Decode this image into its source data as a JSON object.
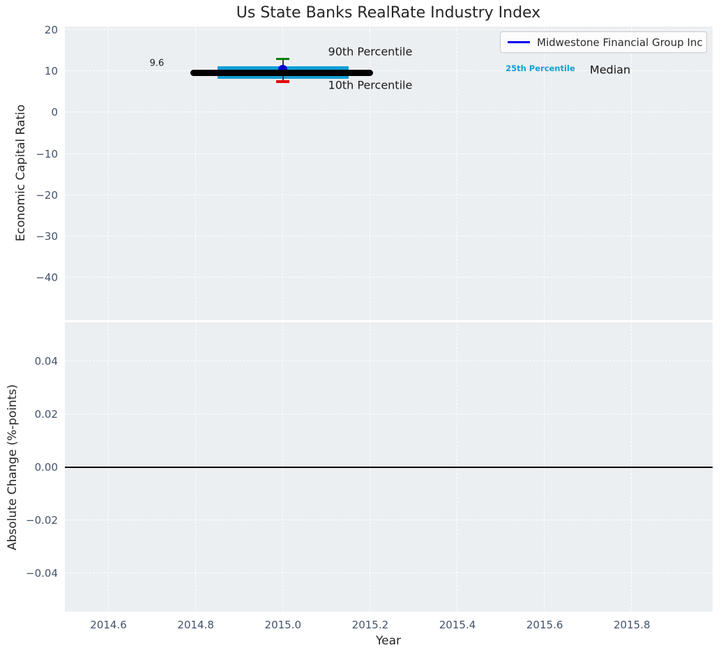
{
  "figure": {
    "colors": {
      "background": "#ffffff",
      "plot_background": "#eceff1",
      "grid": "#ffffff",
      "tick_label": "#42526b",
      "text": "#262626"
    }
  },
  "legend": {
    "label": "Midwestone Financial Group Inc",
    "line_color": "#0000ee"
  },
  "chart_data": [
    {
      "type": "errorbar",
      "title": "Us State Banks RealRate Industry Index",
      "ylabel": "Economic Capital Ratio",
      "xlabel": "Year",
      "grid": "on",
      "legend_position": "upper right",
      "xlim": [
        2014.5,
        2015.985
      ],
      "ylim": [
        -50.3,
        20.85
      ],
      "xticks": [
        "2014.6",
        "2014.8",
        "2015.0",
        "2015.2",
        "2015.4",
        "2015.6",
        "2015.8"
      ],
      "xtick_values": [
        2014.6,
        2014.8,
        2015.0,
        2015.2,
        2015.4,
        2015.6,
        2015.8
      ],
      "yticks": [
        "20",
        "10",
        "0",
        "−10",
        "−20",
        "−30",
        "−40"
      ],
      "ytick_values": [
        20,
        10,
        0,
        -10,
        -20,
        -30,
        -40
      ],
      "series": {
        "company_point": {
          "name": "Midwestone Financial Group Inc",
          "x": 2015.0,
          "y": 10.4,
          "color": "#0000cd"
        },
        "median": {
          "value": 9.6,
          "x_span": [
            2014.795,
            2015.2
          ],
          "color": "#000000"
        },
        "percentile_band_25_75": {
          "low": 8.2,
          "high": 11.2,
          "x_span": [
            2014.85,
            2015.15
          ],
          "color": "#149fd6"
        },
        "percentile_90": {
          "value": 13.0,
          "x": 2015.0,
          "color": "#008000"
        },
        "percentile_10": {
          "value": 7.5,
          "x": 2015.0,
          "color": "#e60000"
        }
      },
      "annotations": {
        "p90": {
          "text": "90th Percentile",
          "x": 2015.2,
          "y": 14.8,
          "color": "#1a1a1a"
        },
        "p10": {
          "text": "10th Percentile",
          "x": 2015.2,
          "y": 6.6,
          "color": "#1a1a1a"
        },
        "p25": {
          "text": "25th Percentile",
          "x": 2015.59,
          "y": 10.7,
          "color": "#149fd6"
        },
        "median": {
          "text": "Median",
          "x": 2015.75,
          "y": 10.4,
          "color": "#111111"
        },
        "median_value": {
          "text": "9.6",
          "x": 2014.711,
          "y": 11.9,
          "color": "#1a1a1a"
        }
      }
    },
    {
      "type": "line",
      "ylabel": "Absolute Change (%-points)",
      "xlabel": "Year",
      "grid": "on",
      "xlim": [
        2014.5,
        2015.985
      ],
      "ylim": [
        -0.0545,
        0.0547
      ],
      "yticks": [
        "0.04",
        "0.02",
        "0.00",
        "−0.02",
        "−0.04"
      ],
      "ytick_values": [
        0.04,
        0.02,
        0.0,
        -0.02,
        -0.04
      ],
      "zero_line_y": 0.0,
      "series": []
    }
  ]
}
